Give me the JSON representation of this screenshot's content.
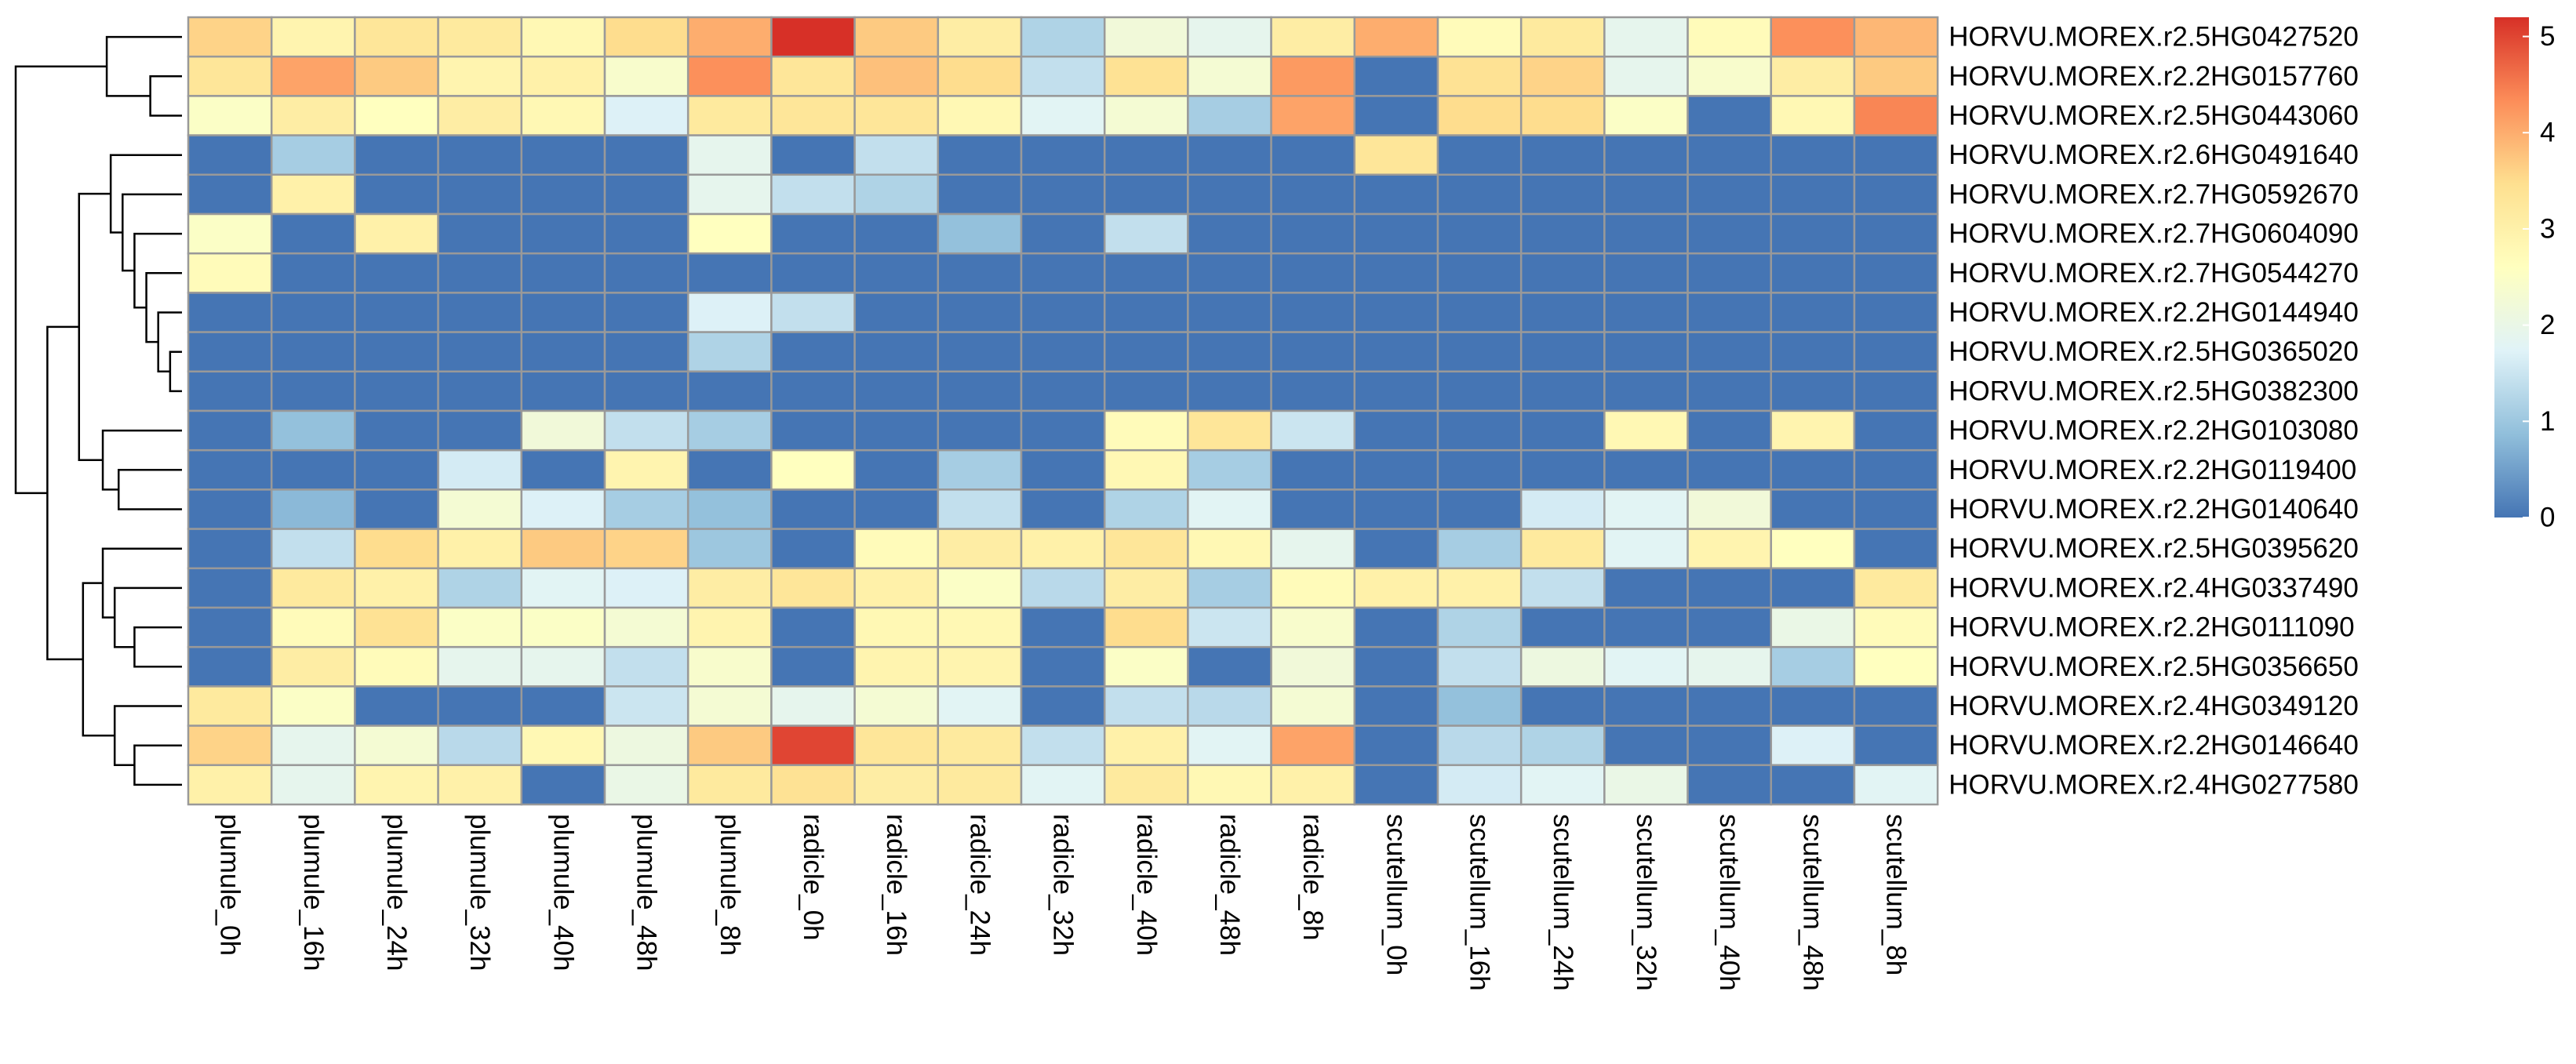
{
  "chart_data": {
    "type": "heatmap",
    "title": "",
    "xlabel": "",
    "ylabel": "",
    "columns": [
      "plumule_0h",
      "plumule_16h",
      "plumule_24h",
      "plumule_32h",
      "plumule_40h",
      "plumule_48h",
      "plumule_8h",
      "radicle_0h",
      "radicle_16h",
      "radicle_24h",
      "radicle_32h",
      "radicle_40h",
      "radicle_48h",
      "radicle_8h",
      "scutellum_0h",
      "scutellum_16h",
      "scutellum_24h",
      "scutellum_32h",
      "scutellum_40h",
      "scutellum_48h",
      "scutellum_8h"
    ],
    "rows": [
      "HORVU.MOREX.r2.5HG0427520",
      "HORVU.MOREX.r2.2HG0157760",
      "HORVU.MOREX.r2.5HG0443060",
      "HORVU.MOREX.r2.6HG0491640",
      "HORVU.MOREX.r2.7HG0592670",
      "HORVU.MOREX.r2.7HG0604090",
      "HORVU.MOREX.r2.7HG0544270",
      "HORVU.MOREX.r2.2HG0144940",
      "HORVU.MOREX.r2.5HG0365020",
      "HORVU.MOREX.r2.5HG0382300",
      "HORVU.MOREX.r2.2HG0103080",
      "HORVU.MOREX.r2.2HG0119400",
      "HORVU.MOREX.r2.2HG0140640",
      "HORVU.MOREX.r2.5HG0395620",
      "HORVU.MOREX.r2.4HG0337490",
      "HORVU.MOREX.r2.2HG0111090",
      "HORVU.MOREX.r2.5HG0356650",
      "HORVU.MOREX.r2.4HG0349120",
      "HORVU.MOREX.r2.2HG0146640",
      "HORVU.MOREX.r2.4HG0277580"
    ],
    "values": [
      [
        3.6,
        2.9,
        3.3,
        3.2,
        2.8,
        3.5,
        4.0,
        5.2,
        3.7,
        3.1,
        1.2,
        2.2,
        1.9,
        3.1,
        4.0,
        2.7,
        3.2,
        1.9,
        2.7,
        4.3,
        3.9
      ],
      [
        3.3,
        4.1,
        3.7,
        2.9,
        3.0,
        2.4,
        4.3,
        3.3,
        3.8,
        3.5,
        1.4,
        3.4,
        2.3,
        4.2,
        0.0,
        3.4,
        3.6,
        1.9,
        2.4,
        3.1,
        3.7
      ],
      [
        2.5,
        3.1,
        2.6,
        3.1,
        2.8,
        1.7,
        3.2,
        3.3,
        3.3,
        2.8,
        1.8,
        2.3,
        1.1,
        4.1,
        0.0,
        3.5,
        3.5,
        2.5,
        0.0,
        2.8,
        4.4
      ],
      [
        0.0,
        1.1,
        0.0,
        0.0,
        0.0,
        0.0,
        1.9,
        0.0,
        1.4,
        0.0,
        0.0,
        0.0,
        0.0,
        0.0,
        3.3,
        0.0,
        0.0,
        0.0,
        0.0,
        0.0,
        0.0
      ],
      [
        0.0,
        3.0,
        0.0,
        0.0,
        0.0,
        0.0,
        1.9,
        1.4,
        1.2,
        0.0,
        0.0,
        0.0,
        0.0,
        0.0,
        0.0,
        0.0,
        0.0,
        0.0,
        0.0,
        0.0,
        0.0
      ],
      [
        2.5,
        0.0,
        3.0,
        0.0,
        0.0,
        0.0,
        2.6,
        0.0,
        0.0,
        0.9,
        0.0,
        1.4,
        0.0,
        0.0,
        0.0,
        0.0,
        0.0,
        0.0,
        0.0,
        0.0,
        0.0
      ],
      [
        2.7,
        0.0,
        0.0,
        0.0,
        0.0,
        0.0,
        0.0,
        0.0,
        0.0,
        0.0,
        0.0,
        0.0,
        0.0,
        0.0,
        0.0,
        0.0,
        0.0,
        0.0,
        0.0,
        0.0,
        0.0
      ],
      [
        0.0,
        0.0,
        0.0,
        0.0,
        0.0,
        0.0,
        1.7,
        1.4,
        0.0,
        0.0,
        0.0,
        0.0,
        0.0,
        0.0,
        0.0,
        0.0,
        0.0,
        0.0,
        0.0,
        0.0,
        0.0
      ],
      [
        0.0,
        0.0,
        0.0,
        0.0,
        0.0,
        0.0,
        1.2,
        0.0,
        0.0,
        0.0,
        0.0,
        0.0,
        0.0,
        0.0,
        0.0,
        0.0,
        0.0,
        0.0,
        0.0,
        0.0,
        0.0
      ],
      [
        0.0,
        0.0,
        0.0,
        0.0,
        0.0,
        0.0,
        0.0,
        0.0,
        0.0,
        0.0,
        0.0,
        0.0,
        0.0,
        0.0,
        0.0,
        0.0,
        0.0,
        0.0,
        0.0,
        0.0,
        0.0
      ],
      [
        0.0,
        0.9,
        0.0,
        0.0,
        2.2,
        1.4,
        1.1,
        0.0,
        0.0,
        0.0,
        0.0,
        2.7,
        3.3,
        1.5,
        0.0,
        0.0,
        0.0,
        2.8,
        0.0,
        2.9,
        0.0
      ],
      [
        0.0,
        0.0,
        0.0,
        1.6,
        0.0,
        2.9,
        0.0,
        2.6,
        0.0,
        1.1,
        0.0,
        2.8,
        1.1,
        0.0,
        0.0,
        0.0,
        0.0,
        0.0,
        0.0,
        0.0,
        0.0
      ],
      [
        0.0,
        0.8,
        0.0,
        2.3,
        1.7,
        1.1,
        0.9,
        0.0,
        0.0,
        1.4,
        0.0,
        1.2,
        1.8,
        0.0,
        0.0,
        0.0,
        1.6,
        1.8,
        2.2,
        0.0,
        0.0
      ],
      [
        0.0,
        1.4,
        3.5,
        3.0,
        3.7,
        3.6,
        1.0,
        0.0,
        2.7,
        3.1,
        3.0,
        3.3,
        2.8,
        1.9,
        0.0,
        1.1,
        3.2,
        1.8,
        2.9,
        2.6,
        0.0
      ],
      [
        0.0,
        3.2,
        3.0,
        1.2,
        1.8,
        1.7,
        3.1,
        3.3,
        3.0,
        2.5,
        1.3,
        3.1,
        1.1,
        2.7,
        3.0,
        3.0,
        1.4,
        0.0,
        0.0,
        0.0,
        3.2
      ],
      [
        0.0,
        2.7,
        3.4,
        2.5,
        2.5,
        2.3,
        2.9,
        0.0,
        2.8,
        2.8,
        0.0,
        3.5,
        1.5,
        2.4,
        0.0,
        1.2,
        0.0,
        0.0,
        0.0,
        2.0,
        2.7
      ],
      [
        0.0,
        3.1,
        2.7,
        1.9,
        1.9,
        1.4,
        2.4,
        0.0,
        2.9,
        2.9,
        0.0,
        2.5,
        0.0,
        2.2,
        0.0,
        1.4,
        2.1,
        1.8,
        1.9,
        1.1,
        2.6
      ],
      [
        3.2,
        2.5,
        0.0,
        0.0,
        0.0,
        1.5,
        2.3,
        1.9,
        2.3,
        1.8,
        0.0,
        1.4,
        1.3,
        2.3,
        0.0,
        0.9,
        0.0,
        0.0,
        0.0,
        0.0,
        0.0
      ],
      [
        3.6,
        1.9,
        2.3,
        1.3,
        2.8,
        2.1,
        3.7,
        5.0,
        3.3,
        3.2,
        1.4,
        3.0,
        1.8,
        4.1,
        0.0,
        1.3,
        1.2,
        0.0,
        0.0,
        1.7,
        0.0
      ],
      [
        3.0,
        1.9,
        2.9,
        3.0,
        0.0,
        2.0,
        3.2,
        3.4,
        3.1,
        3.2,
        1.8,
        3.2,
        2.8,
        3.0,
        0.0,
        1.6,
        1.8,
        2.0,
        0.0,
        0.0,
        1.8
      ]
    ],
    "scale": {
      "min": 0,
      "max": 5.2,
      "ticks": [
        0,
        1,
        2,
        3,
        4,
        5
      ]
    },
    "colors": [
      "#4575B4",
      "#91BFDB",
      "#E0F3F8",
      "#FFFFBF",
      "#FEE090",
      "#FC8D59",
      "#D73027"
    ],
    "cell_border_color": "#999999",
    "legend_position": "right",
    "row_dendrogram": {
      "side": "left",
      "merges": [
        {
          "a": "r1",
          "b": "r2",
          "h": 0.4
        },
        {
          "a": "r0",
          "b": "m0",
          "h": 0.95
        },
        {
          "a": "r8",
          "b": "r9",
          "h": 0.15
        },
        {
          "a": "r7",
          "b": "m2",
          "h": 0.3
        },
        {
          "a": "r6",
          "b": "m3",
          "h": 0.45
        },
        {
          "a": "r5",
          "b": "m4",
          "h": 0.6
        },
        {
          "a": "r4",
          "b": "m5",
          "h": 0.75
        },
        {
          "a": "r3",
          "b": "m6",
          "h": 0.9
        },
        {
          "a": "r11",
          "b": "r12",
          "h": 0.8
        },
        {
          "a": "r10",
          "b": "m8",
          "h": 1.0
        },
        {
          "a": "m7",
          "b": "m9",
          "h": 1.3
        },
        {
          "a": "r15",
          "b": "r16",
          "h": 0.6
        },
        {
          "a": "r14",
          "b": "m11",
          "h": 0.85
        },
        {
          "a": "r13",
          "b": "m12",
          "h": 1.0
        },
        {
          "a": "r18",
          "b": "r19",
          "h": 0.6
        },
        {
          "a": "r17",
          "b": "m14",
          "h": 0.85
        },
        {
          "a": "m13",
          "b": "m15",
          "h": 1.25
        },
        {
          "a": "m10",
          "b": "m16",
          "h": 1.7
        },
        {
          "a": "m1",
          "b": "m17",
          "h": 2.1
        }
      ]
    }
  }
}
